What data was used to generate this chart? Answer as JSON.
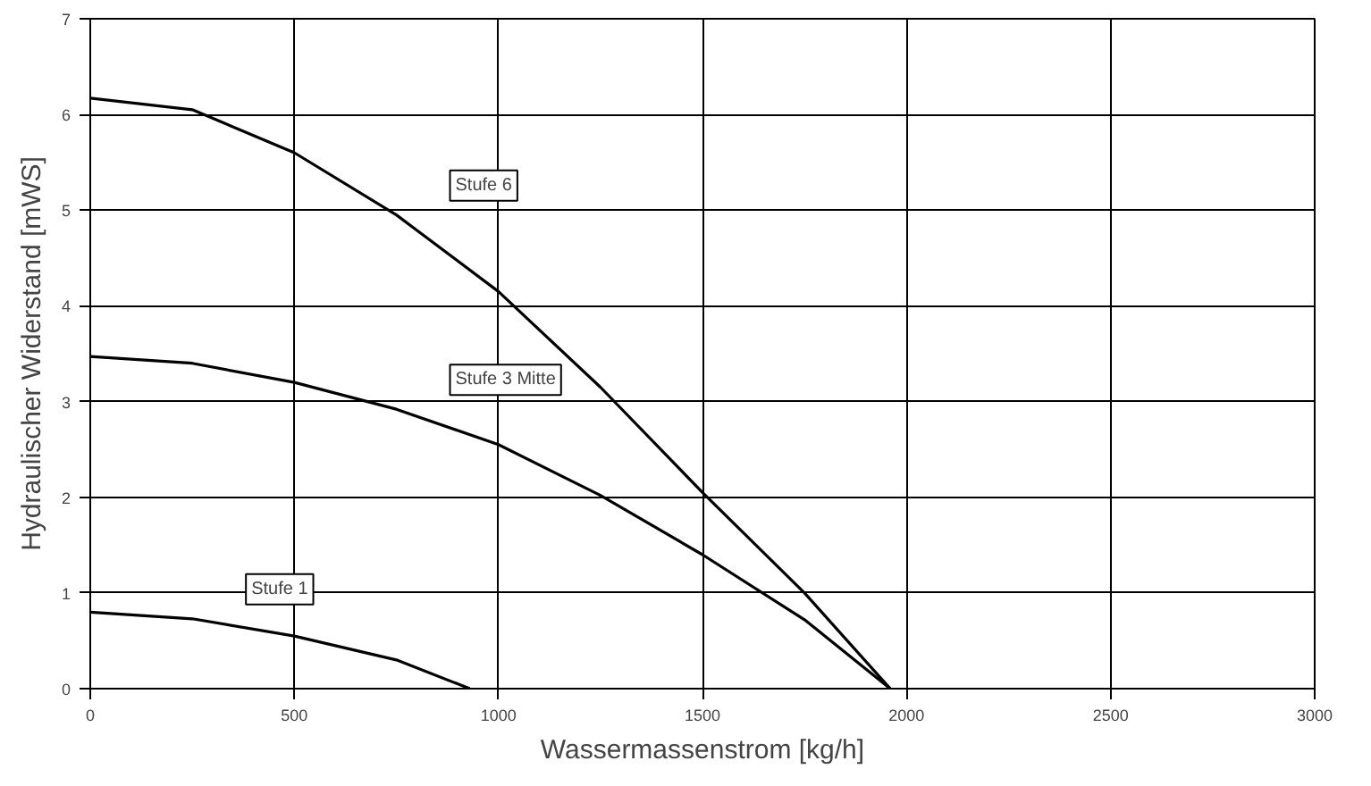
{
  "chart_data": {
    "type": "line",
    "xlabel": "Wassermassenstrom [kg/h]",
    "ylabel": "Hydraulischer Widerstand [mWS]",
    "xlim": [
      0,
      3000
    ],
    "xticks": [
      0,
      500,
      1000,
      1500,
      2000,
      2500,
      3000
    ],
    "ylim": [
      0,
      7
    ],
    "yticks": [
      0,
      1,
      2,
      3,
      4,
      5,
      6,
      7
    ],
    "grid": true,
    "legend": false,
    "marker": "none",
    "line_style": "solid",
    "series": [
      {
        "name": "Stufe 6",
        "color": "#000000",
        "x": [
          0,
          250,
          500,
          750,
          1000,
          1250,
          1500,
          1750,
          1960
        ],
        "values": [
          6.17,
          6.05,
          5.6,
          4.95,
          4.15,
          3.15,
          2.05,
          1.0,
          0
        ]
      },
      {
        "name": "Stufe 3 Mitte",
        "color": "#000000",
        "x": [
          0,
          250,
          500,
          750,
          1000,
          1250,
          1500,
          1750,
          1960
        ],
        "values": [
          3.47,
          3.4,
          3.2,
          2.92,
          2.55,
          2.02,
          1.4,
          0.72,
          0
        ]
      },
      {
        "name": "Stufe 1",
        "color": "#000000",
        "x": [
          0,
          250,
          500,
          750,
          930
        ],
        "values": [
          0.8,
          0.73,
          0.55,
          0.3,
          0
        ]
      }
    ]
  }
}
